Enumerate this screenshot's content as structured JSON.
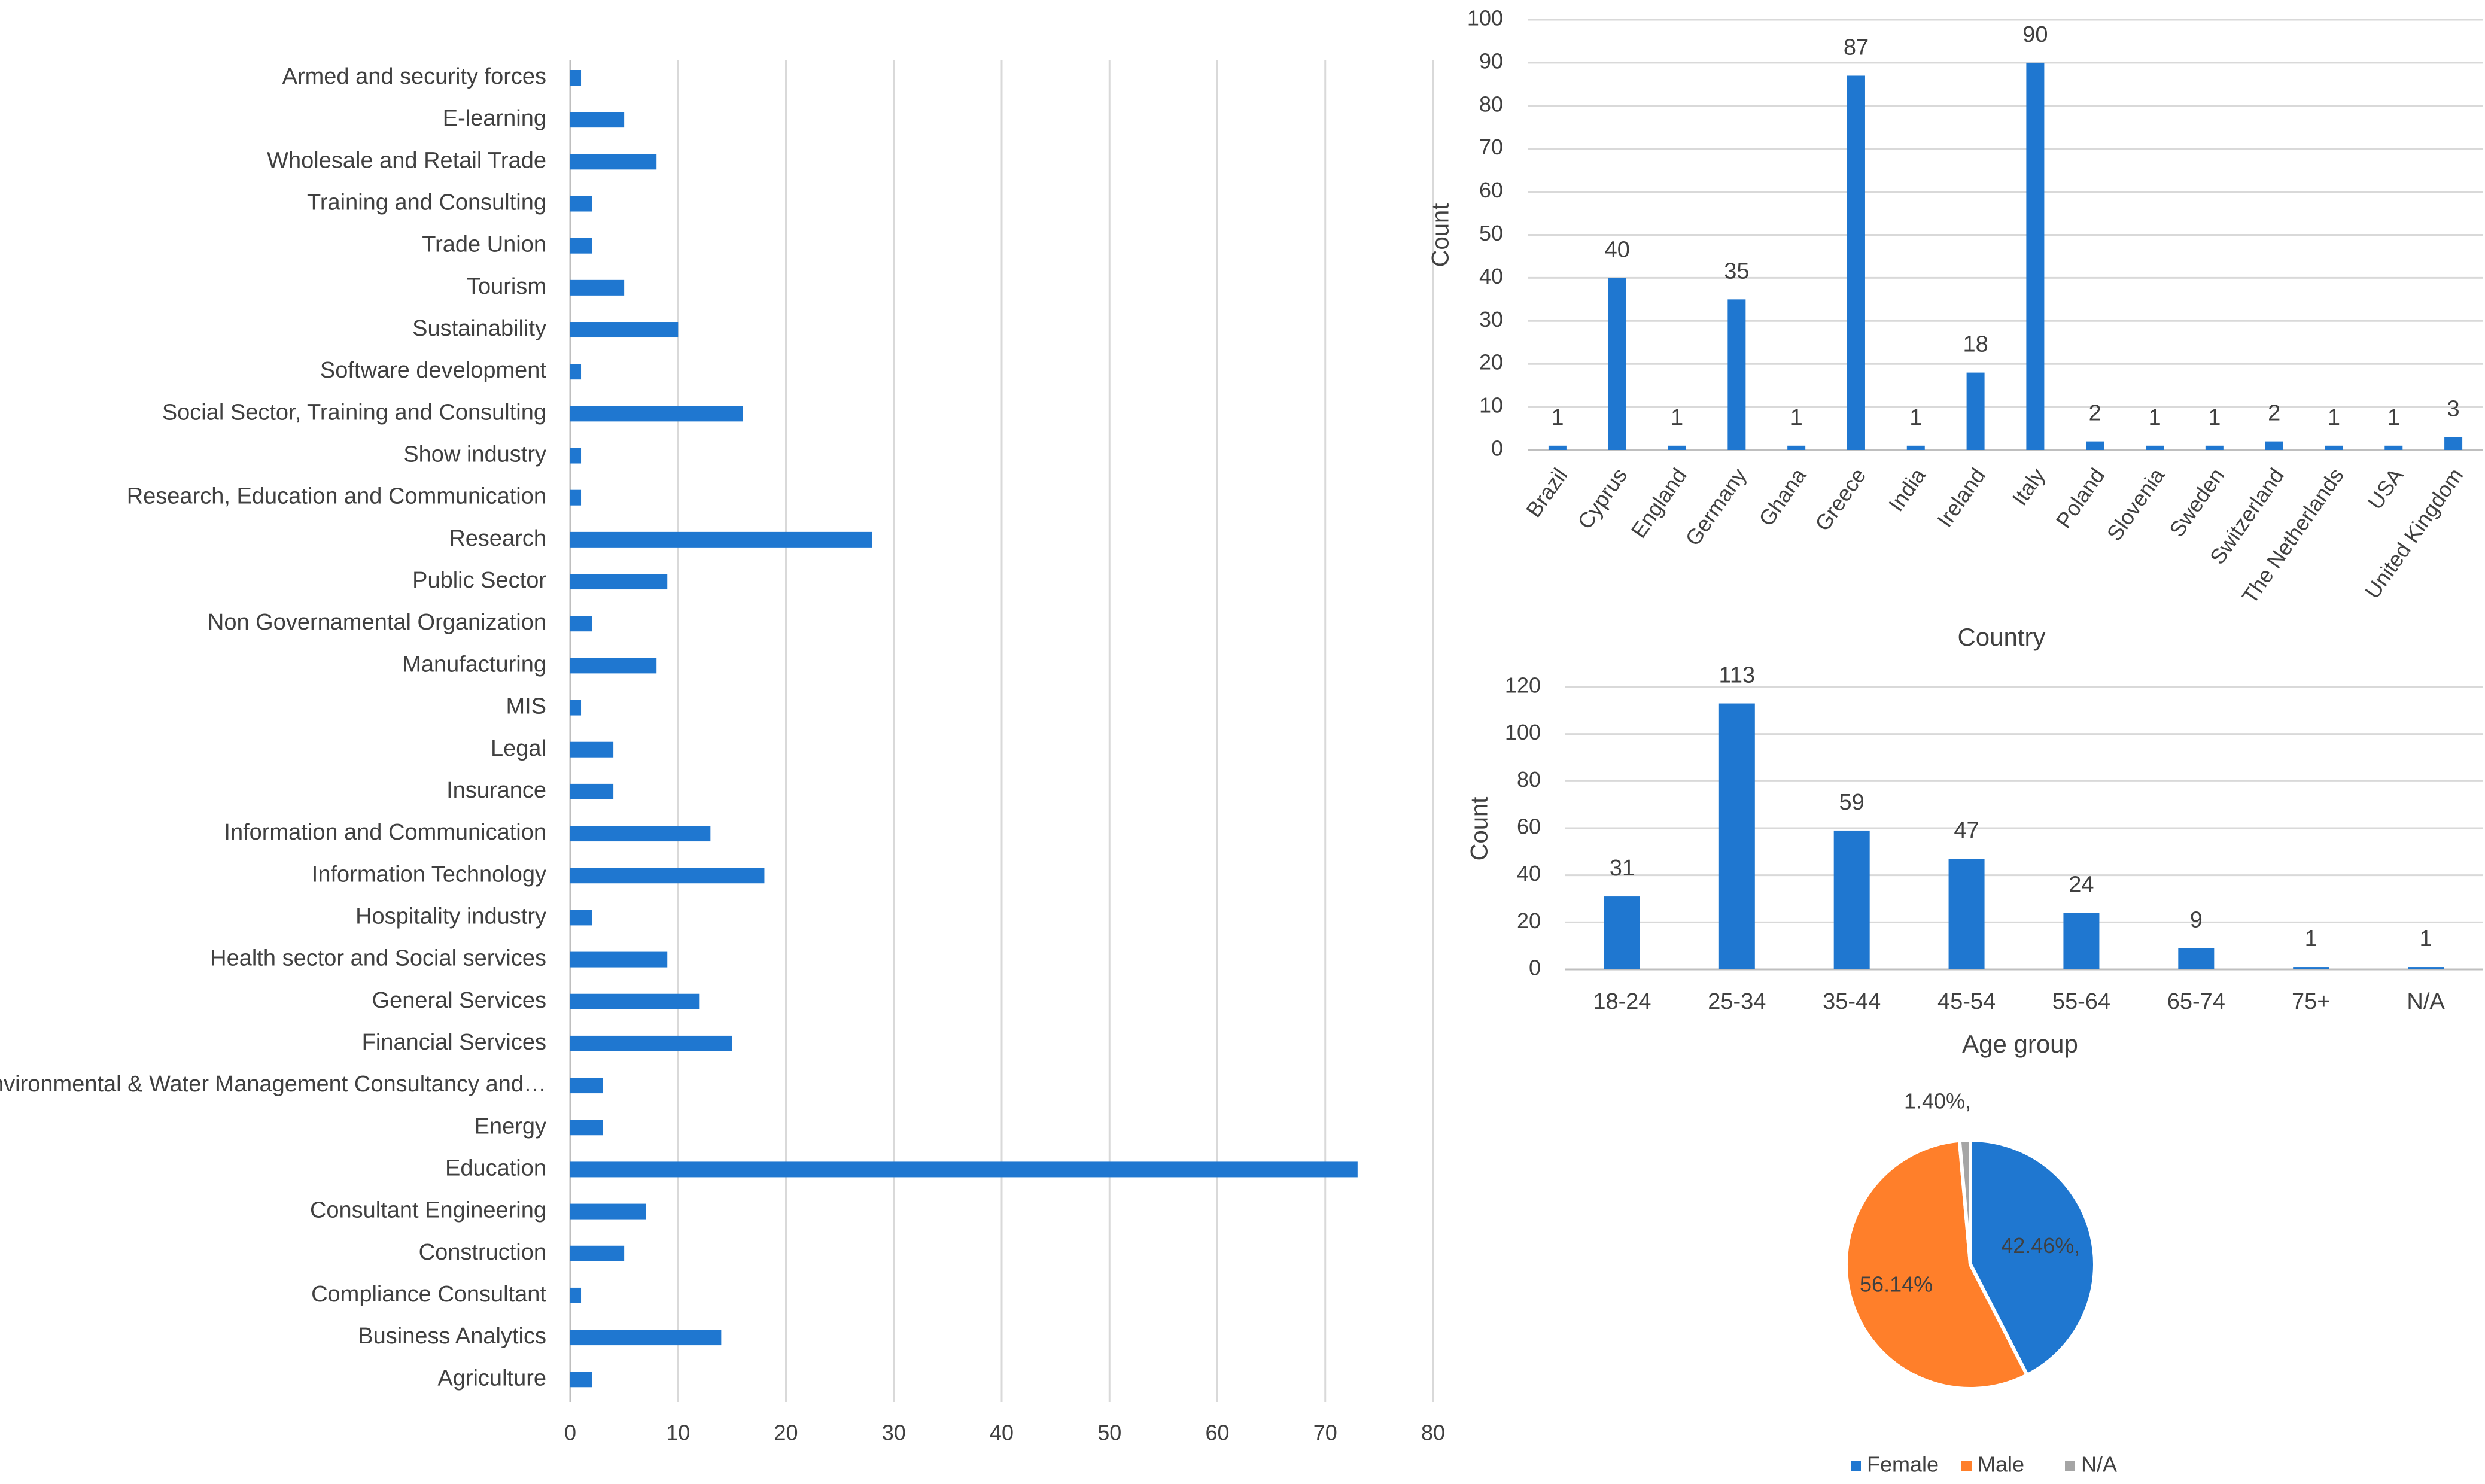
{
  "colors": {
    "bar": "#1f77d0",
    "female": "#1f77d0",
    "male": "#ff7f2a",
    "na": "#a5a5a5",
    "grid": "#d9d9d9",
    "axis": "#bfbfbf",
    "text": "#404040"
  },
  "chart_data": [
    {
      "type": "bar",
      "orientation": "horizontal",
      "title": "",
      "xlabel": "",
      "ylabel": "",
      "xlim": [
        0,
        80
      ],
      "xticks": [
        0,
        10,
        20,
        30,
        40,
        50,
        60,
        70,
        80
      ],
      "grid": "vertical",
      "categories": [
        "Armed and security forces",
        "E-learning",
        "Wholesale and Retail Trade",
        "Training and Consulting",
        "Trade Union",
        "Tourism",
        "Sustainability",
        "Software development",
        "Social Sector, Training and Consulting",
        "Show industry",
        "Research, Education and Communication",
        "Research",
        "Public Sector",
        "Non Governamental Organization",
        "Manufacturing",
        "MIS",
        "Legal",
        "Insurance",
        "Information and Communication",
        "Information Technology",
        "Hospitality industry",
        "Health sector and Social services",
        "General Services",
        "Financial Services",
        "Environmental & Water Management Consultancy and…",
        "Energy",
        "Education",
        "Consultant Engineering",
        "Construction",
        "Compliance Consultant",
        "Business Analytics",
        "Agriculture"
      ],
      "values": [
        1,
        5,
        8,
        2,
        2,
        5,
        10,
        1,
        16,
        1,
        1,
        28,
        9,
        2,
        8,
        1,
        4,
        4,
        13,
        18,
        2,
        9,
        12,
        15,
        3,
        3,
        73,
        7,
        5,
        1,
        14,
        2
      ]
    },
    {
      "type": "bar",
      "title": "",
      "xlabel": "Country",
      "ylabel": "Count",
      "ylim": [
        0,
        100
      ],
      "yticks": [
        0,
        10,
        20,
        30,
        40,
        50,
        60,
        70,
        80,
        90,
        100
      ],
      "grid": "horizontal",
      "categories": [
        "Brazil",
        "Cyprus",
        "England",
        "Germany",
        "Ghana",
        "Greece",
        "India",
        "Ireland",
        "Italy",
        "Poland",
        "Slovenia",
        "Sweden",
        "Switzerland",
        "The Netherlands",
        "USA",
        "United Kingdom"
      ],
      "values": [
        1,
        40,
        1,
        35,
        1,
        87,
        1,
        18,
        90,
        2,
        1,
        1,
        2,
        1,
        1,
        3
      ]
    },
    {
      "type": "bar",
      "title": "",
      "xlabel": "Age group",
      "ylabel": "Count",
      "ylim": [
        0,
        120
      ],
      "yticks": [
        0,
        20,
        40,
        60,
        80,
        100,
        120
      ],
      "grid": "horizontal",
      "categories": [
        "18-24",
        "25-34",
        "35-44",
        "45-54",
        "55-64",
        "65-74",
        "75+",
        "N/A"
      ],
      "values": [
        31,
        113,
        59,
        47,
        24,
        9,
        1,
        1
      ]
    },
    {
      "type": "pie",
      "title": "",
      "legend": "bottom",
      "labels": [
        "Female",
        "Male",
        "N/A"
      ],
      "values": [
        42.46,
        56.14,
        1.4
      ],
      "data_labels": [
        "42.46%,",
        "56.14%",
        "1.40%,"
      ]
    }
  ]
}
